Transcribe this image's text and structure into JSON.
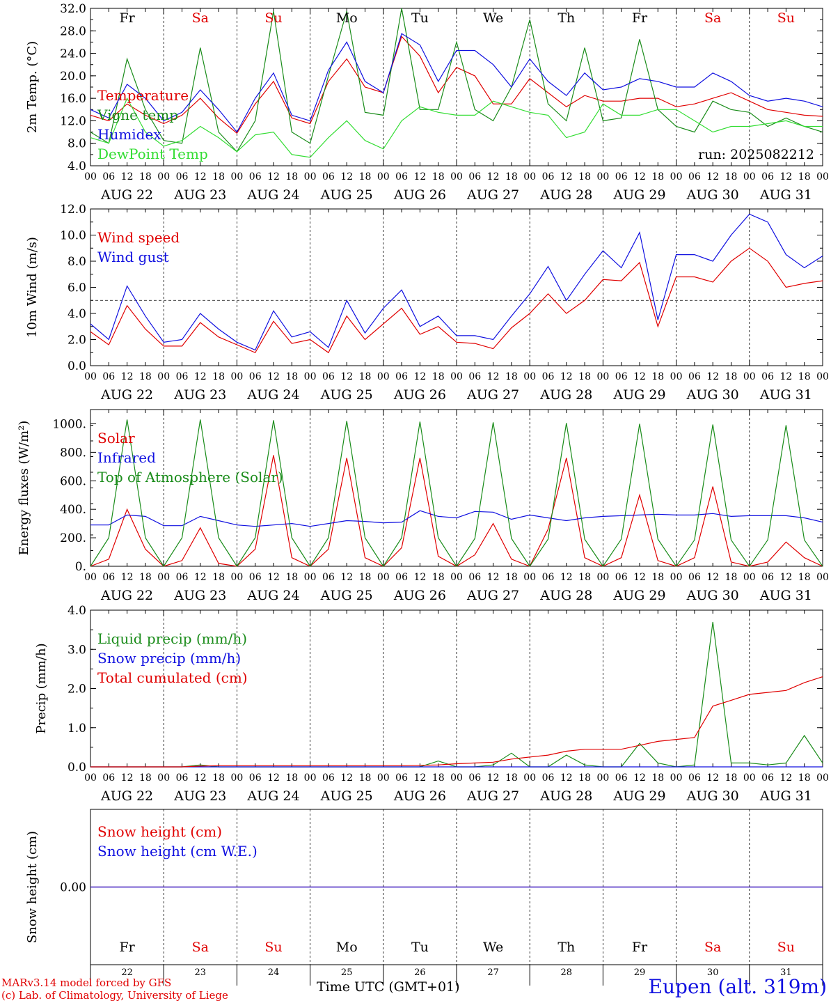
{
  "colors": {
    "red": "#e00000",
    "dark_green": "#1a8c1a",
    "blue": "#1010e0",
    "light_green": "#33dd33",
    "sunday_sat": "#e00000",
    "weekday": "#000000"
  },
  "days": {
    "names": [
      "Fr",
      "Sa",
      "Su",
      "Mo",
      "Tu",
      "We",
      "Th",
      "Fr",
      "Sa",
      "Su"
    ],
    "weekend": [
      false,
      true,
      true,
      false,
      false,
      false,
      false,
      false,
      true,
      true
    ],
    "date_labels": [
      "AUG 22",
      "AUG 23",
      "AUG 24",
      "AUG 25",
      "AUG 26",
      "AUG 27",
      "AUG 28",
      "AUG 29",
      "AUG 30",
      "AUG 31"
    ],
    "day_numbers": [
      "22",
      "23",
      "24",
      "25",
      "26",
      "27",
      "28",
      "29",
      "30",
      "31"
    ],
    "hour_ticks": [
      "00",
      "06",
      "12",
      "18"
    ],
    "final_tick": "00"
  },
  "footer": {
    "model": "MARv3.14 model forced by GFS",
    "copyright": "(c) Lab. of Climatology, University of Liege",
    "xlabel": "Time UTC (GMT+01)",
    "location": "Eupen (alt. 319m)"
  },
  "chart_data": [
    {
      "type": "line",
      "ylabel": "2m Temp. (°C)",
      "ylim": [
        4.0,
        32.0
      ],
      "yticks": [
        "4.0",
        "8.0",
        "12.0",
        "16.0",
        "20.0",
        "24.0",
        "28.0",
        "32.0"
      ],
      "annotation": "run: 2025082212",
      "legend_placement": "left",
      "x_hours": [
        0,
        6,
        12,
        18,
        24,
        30,
        36,
        42,
        48,
        54,
        60,
        66,
        72,
        78,
        84,
        90,
        96,
        102,
        108,
        114,
        120,
        126,
        132,
        138,
        144,
        150,
        156,
        162,
        168,
        174,
        180,
        186,
        192,
        198,
        204,
        210,
        216,
        222,
        228,
        234,
        240
      ],
      "series": [
        {
          "name": "Temperature",
          "color": "#e00000",
          "values": [
            13.0,
            12.0,
            15.0,
            13.0,
            11.5,
            13.0,
            16.0,
            12.5,
            9.8,
            15.0,
            19.0,
            12.5,
            11.5,
            19.0,
            23.0,
            18.0,
            17.0,
            27.0,
            23.5,
            17.0,
            21.5,
            20.0,
            15.0,
            15.0,
            19.5,
            17.0,
            14.5,
            16.5,
            15.5,
            15.5,
            16.0,
            16.0,
            14.5,
            15.0,
            16.0,
            17.0,
            15.5,
            14.0,
            13.5,
            13.0,
            12.8
          ]
        },
        {
          "name": "Vigne temp",
          "color": "#1a8c1a",
          "values": [
            10.0,
            8.0,
            23.0,
            14.0,
            8.5,
            8.0,
            25.0,
            10.0,
            6.5,
            12.0,
            31.5,
            10.0,
            8.0,
            20.0,
            31.5,
            13.5,
            13.0,
            32.0,
            14.0,
            14.0,
            26.0,
            14.0,
            12.0,
            18.0,
            30.0,
            15.0,
            12.0,
            25.0,
            12.0,
            12.5,
            26.5,
            14.0,
            11.0,
            10.0,
            15.5,
            14.0,
            13.5,
            11.0,
            12.5,
            11.0,
            10.0
          ]
        },
        {
          "name": "Humidex",
          "color": "#1010e0",
          "values": [
            14.0,
            12.5,
            18.5,
            16.0,
            12.0,
            13.5,
            17.5,
            14.0,
            10.0,
            16.0,
            20.5,
            13.0,
            12.0,
            21.0,
            26.0,
            19.0,
            17.0,
            27.5,
            25.5,
            19.0,
            24.5,
            24.5,
            22.0,
            18.0,
            23.0,
            19.0,
            16.5,
            20.5,
            17.5,
            18.0,
            19.5,
            19.0,
            18.0,
            18.0,
            20.5,
            19.0,
            16.5,
            15.5,
            16.0,
            15.5,
            14.5
          ]
        },
        {
          "name": "DewPoint Temp",
          "color": "#33dd33",
          "values": [
            9.0,
            8.0,
            16.0,
            10.0,
            7.5,
            8.5,
            11.0,
            9.0,
            6.5,
            9.5,
            10.0,
            6.0,
            5.5,
            9.0,
            12.0,
            8.5,
            7.0,
            12.0,
            14.5,
            13.5,
            13.0,
            13.0,
            15.5,
            14.5,
            13.5,
            13.0,
            9.0,
            10.0,
            15.0,
            13.0,
            13.0,
            14.0,
            14.0,
            12.0,
            10.0,
            11.0,
            11.0,
            11.5,
            12.0,
            11.0,
            11.0
          ]
        }
      ]
    },
    {
      "type": "line",
      "ylabel": "10m Wind (m/s)",
      "ylim": [
        0.0,
        12.0
      ],
      "yticks": [
        "0.0",
        "2.0",
        "4.0",
        "6.0",
        "8.0",
        "10.0",
        "12.0"
      ],
      "reference_line": 5.0,
      "legend_placement": "left",
      "x_hours": [
        0,
        6,
        12,
        18,
        24,
        30,
        36,
        42,
        48,
        54,
        60,
        66,
        72,
        78,
        84,
        90,
        96,
        102,
        108,
        114,
        120,
        126,
        132,
        138,
        144,
        150,
        156,
        162,
        168,
        174,
        180,
        186,
        192,
        198,
        204,
        210,
        216,
        222,
        228,
        234,
        240
      ],
      "series": [
        {
          "name": "Wind speed",
          "color": "#e00000",
          "values": [
            2.6,
            1.6,
            4.6,
            2.8,
            1.5,
            1.5,
            3.3,
            2.2,
            1.6,
            1.0,
            3.4,
            1.7,
            2.0,
            1.0,
            3.8,
            2.0,
            3.2,
            4.4,
            2.4,
            3.0,
            1.8,
            1.7,
            1.3,
            2.9,
            4.0,
            5.5,
            4.0,
            5.0,
            6.6,
            6.5,
            7.9,
            3.0,
            6.8,
            6.8,
            6.4,
            8.0,
            9.0,
            8.0,
            6.0,
            6.3,
            6.5
          ]
        },
        {
          "name": "Wind gust",
          "color": "#1010e0",
          "values": [
            3.2,
            2.0,
            6.1,
            3.8,
            1.8,
            2.0,
            4.0,
            2.8,
            1.8,
            1.2,
            4.2,
            2.2,
            2.6,
            1.4,
            5.0,
            2.5,
            4.4,
            5.8,
            3.0,
            3.8,
            2.3,
            2.3,
            2.0,
            3.8,
            5.5,
            7.6,
            5.0,
            7.0,
            8.8,
            7.5,
            10.2,
            3.5,
            8.5,
            8.5,
            8.0,
            10.0,
            11.6,
            11.0,
            8.5,
            7.5,
            8.4
          ]
        }
      ]
    },
    {
      "type": "line",
      "ylabel": "Energy fluxes (W/m²)",
      "ylim": [
        0,
        1100
      ],
      "yticks": [
        "0.",
        "200.",
        "400.",
        "600.",
        "800.",
        "1000."
      ],
      "legend_placement": "left",
      "x_hours": [
        0,
        6,
        12,
        18,
        24,
        30,
        36,
        42,
        48,
        54,
        60,
        66,
        72,
        78,
        84,
        90,
        96,
        102,
        108,
        114,
        120,
        126,
        132,
        138,
        144,
        150,
        156,
        162,
        168,
        174,
        180,
        186,
        192,
        198,
        204,
        210,
        216,
        222,
        228,
        234,
        240
      ],
      "series": [
        {
          "name": "Solar",
          "color": "#e00000",
          "values": [
            0,
            50,
            400,
            120,
            0,
            40,
            270,
            20,
            0,
            120,
            780,
            60,
            0,
            120,
            760,
            60,
            0,
            130,
            760,
            70,
            0,
            80,
            300,
            50,
            0,
            260,
            760,
            60,
            0,
            60,
            500,
            40,
            0,
            60,
            560,
            30,
            0,
            30,
            170,
            60,
            0
          ]
        },
        {
          "name": "Infrared",
          "color": "#1010e0",
          "values": [
            290,
            290,
            360,
            350,
            285,
            285,
            350,
            320,
            290,
            280,
            290,
            300,
            280,
            300,
            320,
            315,
            305,
            310,
            390,
            350,
            340,
            385,
            380,
            330,
            360,
            340,
            320,
            340,
            350,
            355,
            360,
            365,
            360,
            360,
            370,
            350,
            355,
            355,
            355,
            340,
            310
          ]
        },
        {
          "name": "Top of Atmosphere (Solar)",
          "color": "#1a8c1a",
          "values": [
            0,
            200,
            1030,
            200,
            0,
            200,
            1030,
            200,
            0,
            200,
            1025,
            200,
            0,
            200,
            1020,
            200,
            0,
            200,
            1015,
            200,
            0,
            195,
            1010,
            195,
            0,
            190,
            1005,
            190,
            0,
            190,
            1000,
            190,
            0,
            185,
            995,
            185,
            0,
            185,
            990,
            185,
            0
          ]
        }
      ]
    },
    {
      "type": "line",
      "ylabel": "Precip (mm/h)",
      "ylim": [
        0.0,
        4.0
      ],
      "yticks": [
        "0.0",
        "1.0",
        "2.0",
        "3.0",
        "4.0"
      ],
      "legend_placement": "left",
      "x_hours": [
        0,
        6,
        12,
        18,
        24,
        30,
        36,
        42,
        48,
        54,
        60,
        66,
        72,
        78,
        84,
        90,
        96,
        102,
        108,
        114,
        120,
        126,
        132,
        138,
        144,
        150,
        156,
        162,
        168,
        174,
        180,
        186,
        192,
        198,
        204,
        210,
        216,
        222,
        228,
        234,
        240
      ],
      "series": [
        {
          "name": "Liquid precip (mm/h)",
          "color": "#1a8c1a",
          "values": [
            0,
            0,
            0,
            0,
            0,
            0,
            0.05,
            0,
            0,
            0,
            0,
            0,
            0,
            0,
            0,
            0,
            0,
            0,
            0,
            0.15,
            0,
            0,
            0.05,
            0.35,
            0,
            0,
            0.3,
            0.05,
            0,
            0,
            0.6,
            0.1,
            0,
            0.05,
            3.7,
            0.1,
            0.1,
            0.05,
            0.1,
            0.8,
            0.1
          ]
        },
        {
          "name": "Snow precip (mm/h)",
          "color": "#1010e0",
          "values": [
            0,
            0,
            0,
            0,
            0,
            0,
            0,
            0,
            0,
            0,
            0,
            0,
            0,
            0,
            0,
            0,
            0,
            0,
            0,
            0,
            0,
            0,
            0,
            0,
            0,
            0,
            0,
            0,
            0,
            0,
            0,
            0,
            0,
            0,
            0,
            0,
            0,
            0,
            0,
            0,
            0
          ]
        },
        {
          "name": "Total cumulated (cm)",
          "color": "#e00000",
          "values": [
            0,
            0,
            0,
            0,
            0,
            0,
            0.02,
            0.03,
            0.03,
            0.03,
            0.03,
            0.03,
            0.03,
            0.03,
            0.03,
            0.03,
            0.03,
            0.03,
            0.04,
            0.05,
            0.08,
            0.1,
            0.12,
            0.2,
            0.25,
            0.3,
            0.4,
            0.45,
            0.45,
            0.45,
            0.55,
            0.65,
            0.7,
            0.75,
            1.55,
            1.7,
            1.85,
            1.9,
            1.95,
            2.15,
            2.3
          ]
        }
      ]
    },
    {
      "type": "line",
      "ylabel": "Snow height (cm)",
      "ylim": [
        -1.0,
        1.0
      ],
      "yticks": [
        "0.00"
      ],
      "legend_placement": "left",
      "x_hours": [
        0,
        240
      ],
      "series": [
        {
          "name": "Snow height (cm)",
          "color": "#e00000",
          "values": [
            0,
            0
          ]
        },
        {
          "name": "Snow height (cm W.E.)",
          "color": "#1010e0",
          "values": [
            0,
            0
          ]
        }
      ]
    }
  ]
}
